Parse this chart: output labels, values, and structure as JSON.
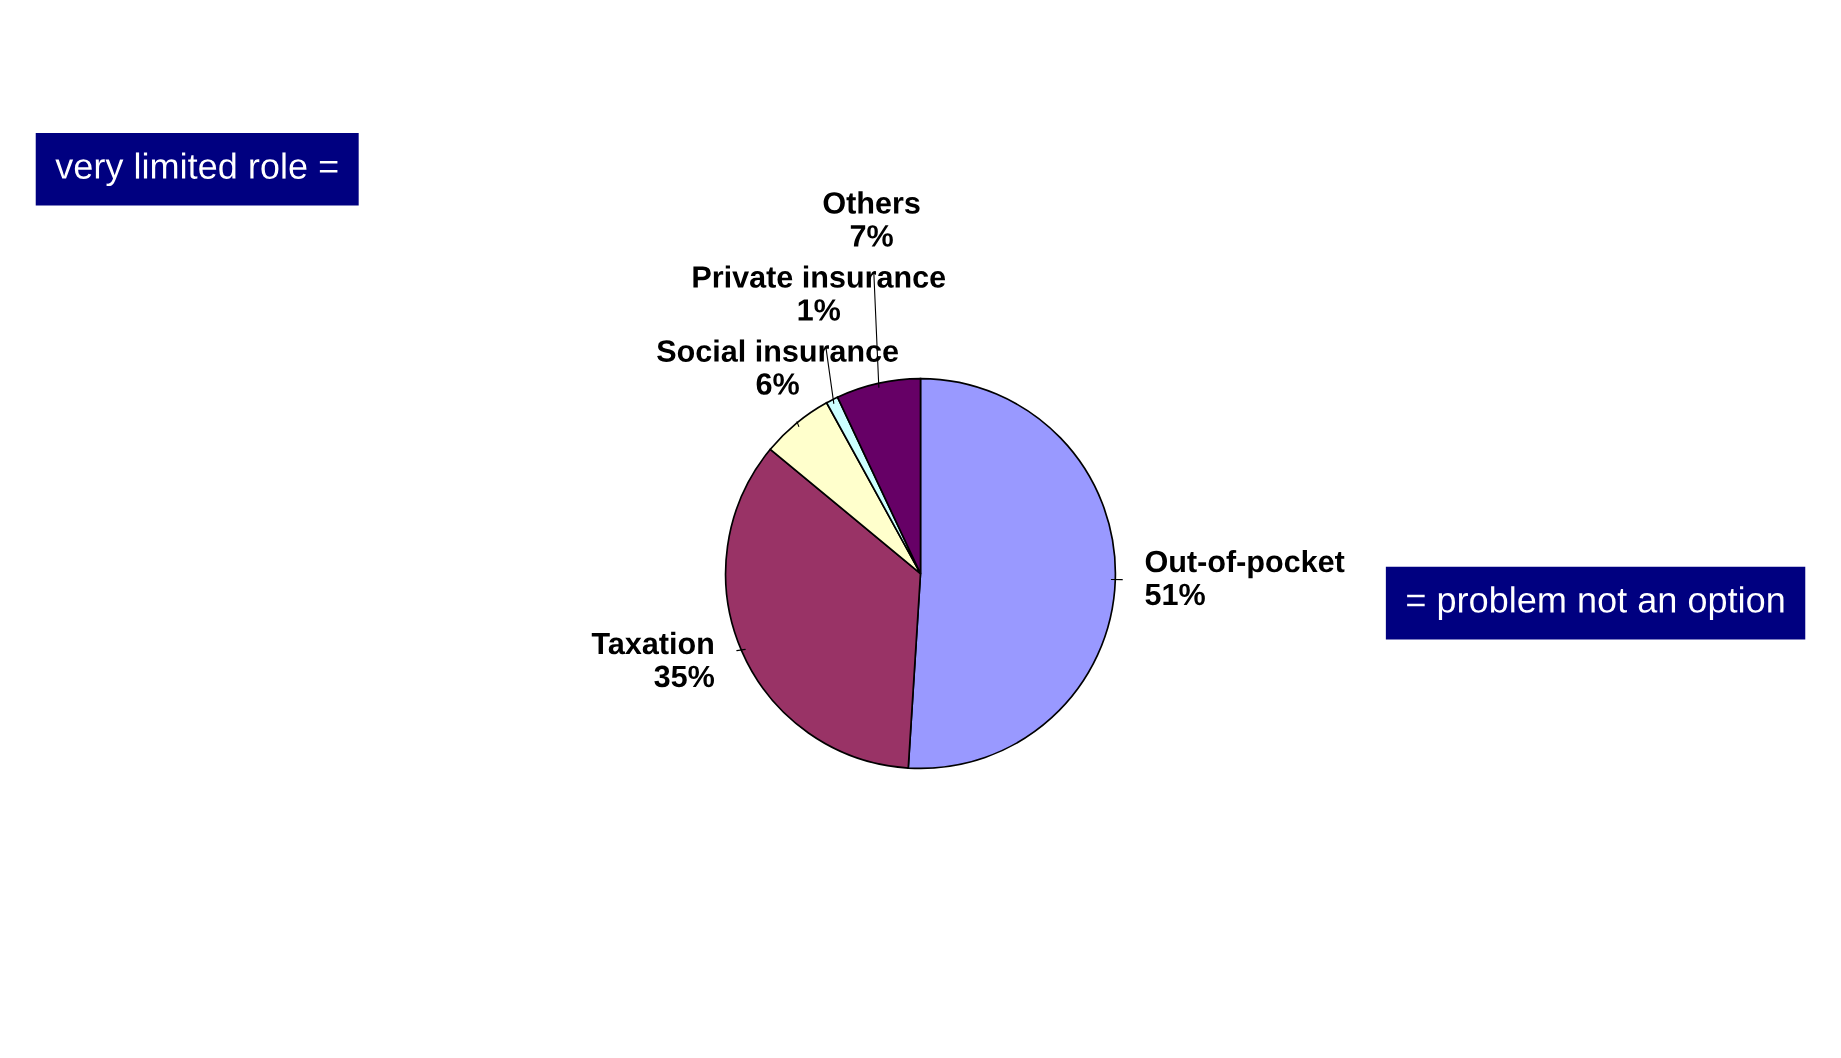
{
  "chart_data": {
    "type": "pie",
    "categories": [
      "Out-of-pocket",
      "Taxation",
      "Social insurance",
      "Private insurance",
      "Others"
    ],
    "values": [
      51,
      35,
      6,
      1,
      7
    ],
    "value_labels": [
      "51%",
      "35%",
      "6%",
      "1%",
      "7%"
    ],
    "colors": [
      "#9999ff",
      "#993366",
      "#ffffcc",
      "#ccffff",
      "#660066"
    ],
    "legend": false,
    "annotations": [
      "very limited role =",
      "= problem not an option"
    ]
  }
}
